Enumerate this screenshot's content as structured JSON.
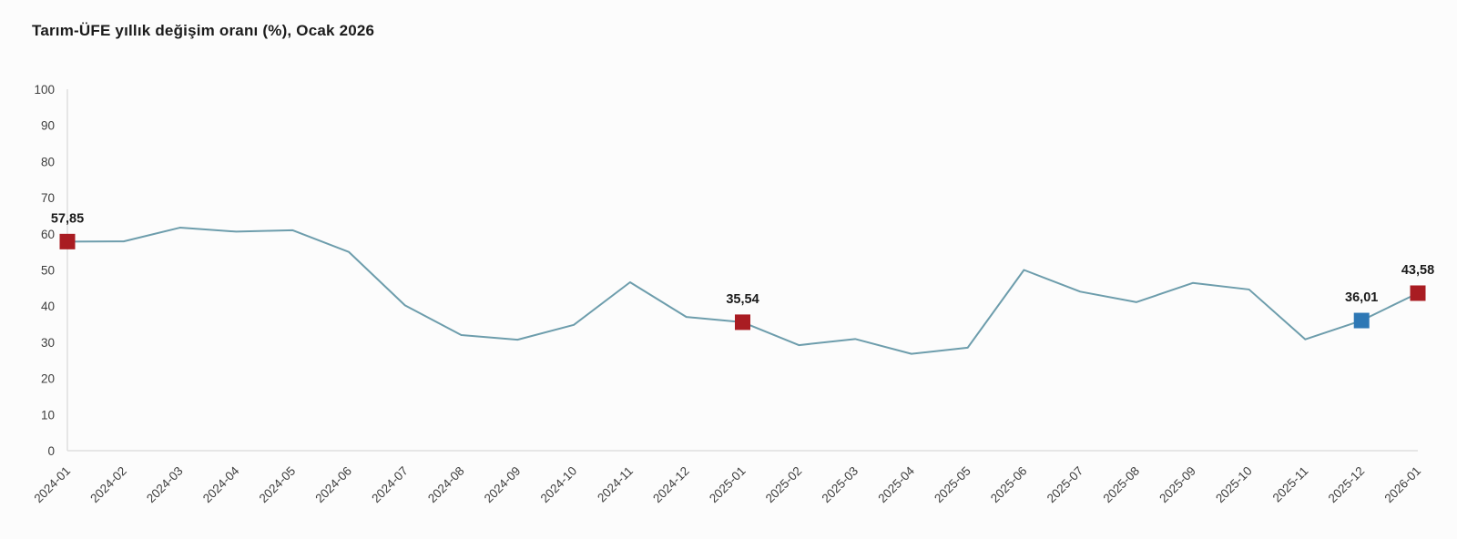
{
  "title": "Tarım-ÜFE yıllık değişim oranı (%), Ocak 2026",
  "colors": {
    "background": "#fcfcfc",
    "line": "#6d9dac",
    "marker_red": "#a91c22",
    "marker_blue": "#2e78b5",
    "axis": "#dedede",
    "tick_text": "#3d3d3d",
    "label_text": "#1b1b1b"
  },
  "chart_data": {
    "type": "line",
    "title": "Tarım-ÜFE yıllık değişim oranı (%), Ocak 2026",
    "categories": [
      "2024-01",
      "2024-02",
      "2024-03",
      "2024-04",
      "2024-05",
      "2024-06",
      "2024-07",
      "2024-08",
      "2024-09",
      "2024-10",
      "2024-11",
      "2024-12",
      "2025-01",
      "2025-02",
      "2025-03",
      "2025-04",
      "2025-05",
      "2025-06",
      "2025-07",
      "2025-08",
      "2025-09",
      "2025-10",
      "2025-11",
      "2025-12",
      "2026-01"
    ],
    "values": [
      57.85,
      57.9,
      61.7,
      60.6,
      61.0,
      55.0,
      40.2,
      32.0,
      30.7,
      34.8,
      46.6,
      37.0,
      35.54,
      29.2,
      30.9,
      26.8,
      28.5,
      50.0,
      44.0,
      41.1,
      46.4,
      44.6,
      30.8,
      36.01,
      43.58
    ],
    "ylim": [
      0,
      100
    ],
    "y_ticks": [
      0,
      10,
      20,
      30,
      40,
      50,
      60,
      70,
      80,
      90,
      100
    ],
    "grid": false,
    "legend": false,
    "xlabel": "",
    "ylabel": "",
    "marked_points": [
      {
        "index": 0,
        "category": "2024-01",
        "value": 57.85,
        "value_label": "57,85",
        "marker": "red"
      },
      {
        "index": 12,
        "category": "2025-01",
        "value": 35.54,
        "value_label": "35,54",
        "marker": "red"
      },
      {
        "index": 23,
        "category": "2025-12",
        "value": 36.01,
        "value_label": "36,01",
        "marker": "blue"
      },
      {
        "index": 24,
        "category": "2026-01",
        "value": 43.58,
        "value_label": "43,58",
        "marker": "red"
      }
    ]
  }
}
